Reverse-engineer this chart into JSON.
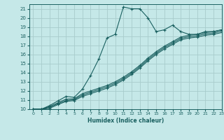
{
  "xlabel": "Humidex (Indice chaleur)",
  "ylabel": "",
  "xlim": [
    -0.5,
    23
  ],
  "ylim": [
    10,
    21.5
  ],
  "xticks": [
    0,
    1,
    2,
    3,
    4,
    5,
    6,
    7,
    8,
    9,
    10,
    11,
    12,
    13,
    14,
    15,
    16,
    17,
    18,
    19,
    20,
    21,
    22,
    23
  ],
  "yticks": [
    10,
    11,
    12,
    13,
    14,
    15,
    16,
    17,
    18,
    19,
    20,
    21
  ],
  "bg_color": "#c5e8e8",
  "grid_color": "#a8cccc",
  "line_color": "#1a6060",
  "lines": [
    {
      "x": [
        0,
        1,
        2,
        3,
        4,
        5,
        6,
        7,
        8,
        9,
        10,
        11,
        12,
        13,
        14,
        15,
        16,
        17,
        18,
        19,
        20,
        21,
        22,
        23
      ],
      "y": [
        10,
        10,
        10.4,
        10.9,
        11.4,
        11.3,
        12.2,
        13.7,
        15.5,
        17.8,
        18.2,
        21.2,
        21.0,
        21.0,
        20.0,
        18.5,
        18.7,
        19.2,
        18.5,
        18.2,
        18.2,
        18.5,
        18.5,
        18.7
      ]
    },
    {
      "x": [
        0,
        1,
        2,
        3,
        4,
        5,
        6,
        7,
        8,
        9,
        10,
        11,
        12,
        13,
        14,
        15,
        16,
        17,
        18,
        19,
        20,
        21,
        22,
        23
      ],
      "y": [
        10,
        10,
        10.3,
        10.7,
        11.1,
        11.15,
        11.7,
        12.0,
        12.3,
        12.6,
        13.0,
        13.5,
        14.1,
        14.8,
        15.6,
        16.3,
        16.9,
        17.4,
        17.9,
        18.1,
        18.2,
        18.4,
        18.5,
        18.7
      ]
    },
    {
      "x": [
        0,
        1,
        2,
        3,
        4,
        5,
        6,
        7,
        8,
        9,
        10,
        11,
        12,
        13,
        14,
        15,
        16,
        17,
        18,
        19,
        20,
        21,
        22,
        23
      ],
      "y": [
        10,
        10,
        10.2,
        10.6,
        10.95,
        11.05,
        11.55,
        11.85,
        12.15,
        12.45,
        12.85,
        13.35,
        13.95,
        14.65,
        15.45,
        16.15,
        16.75,
        17.25,
        17.75,
        17.95,
        18.05,
        18.25,
        18.35,
        18.55
      ]
    },
    {
      "x": [
        0,
        1,
        2,
        3,
        4,
        5,
        6,
        7,
        8,
        9,
        10,
        11,
        12,
        13,
        14,
        15,
        16,
        17,
        18,
        19,
        20,
        21,
        22,
        23
      ],
      "y": [
        10,
        10,
        10.1,
        10.5,
        10.85,
        10.95,
        11.4,
        11.7,
        12.0,
        12.3,
        12.7,
        13.2,
        13.8,
        14.5,
        15.3,
        16.0,
        16.6,
        17.1,
        17.6,
        17.8,
        17.9,
        18.1,
        18.2,
        18.4
      ]
    }
  ]
}
